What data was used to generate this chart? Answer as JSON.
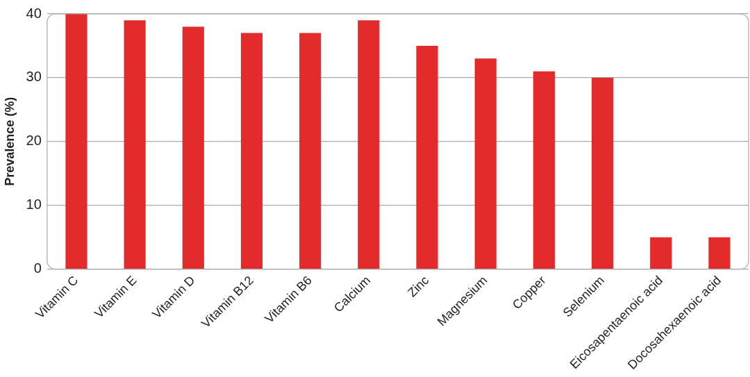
{
  "chart_data": {
    "type": "bar",
    "ylabel": "Prevalence (%)",
    "categories": [
      "Vitamin C",
      "Vitamin E",
      "Vitamin D",
      "Vitamin B12",
      "Vitamin B6",
      "Calcium",
      "Zinc",
      "Magnesium",
      "Copper",
      "Selenium",
      "Eicosapentaenoic acid",
      "Docosahexaenoic acid"
    ],
    "values": [
      40,
      39,
      38,
      37,
      37,
      39,
      35,
      33,
      31,
      30,
      5,
      5
    ],
    "color": "#e32b2b",
    "ylim": [
      0,
      40
    ],
    "yticks": [
      0,
      10,
      20,
      30,
      40
    ],
    "grid": "y",
    "legend": false
  }
}
